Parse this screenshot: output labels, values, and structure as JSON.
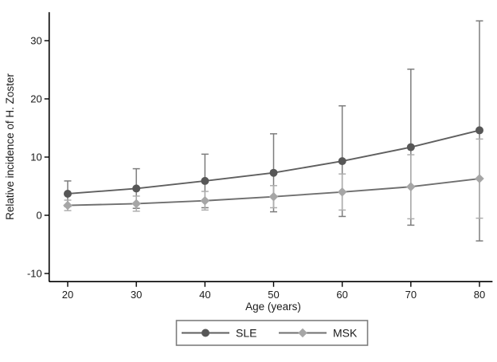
{
  "figure": {
    "background": "#ffffff",
    "axis_color": "#000000",
    "text_color": "#1a1a1a",
    "legend_border_color": "#7d7d7d"
  },
  "chart_data": {
    "type": "line",
    "title": "",
    "xlabel": "Age (years)",
    "ylabel": "Relative incidence of H. Zoster",
    "x": [
      20,
      30,
      40,
      50,
      60,
      70,
      80
    ],
    "xticks": [
      "20",
      "30",
      "40",
      "50",
      "60",
      "70",
      "80"
    ],
    "yticks": [
      "30",
      "20",
      "10",
      "0",
      "-10"
    ],
    "ytick_values": [
      30,
      20,
      10,
      0,
      -10
    ],
    "xlim": [
      17.3,
      81.9
    ],
    "ylim": [
      -11.4,
      34.9
    ],
    "grid": false,
    "legend_position": "bottom-center",
    "error_bars": true,
    "series": [
      {
        "name": "SLE",
        "marker": "circle",
        "marker_color": "#575757",
        "line_color": "#5f5f5f",
        "error_color": "#7d7d7d",
        "values": [
          3.7,
          4.6,
          5.9,
          7.3,
          9.3,
          11.7,
          14.6
        ],
        "ci_low": [
          1.5,
          1.2,
          1.3,
          0.6,
          -0.2,
          -1.7,
          -4.4
        ],
        "ci_high": [
          5.9,
          8.0,
          10.5,
          14.0,
          18.8,
          25.1,
          33.4
        ]
      },
      {
        "name": "MSK",
        "marker": "diamond",
        "marker_color": "#a6a6a6",
        "line_color": "#6f6f6f",
        "error_color": "#aeaeae",
        "values": [
          1.7,
          2.0,
          2.5,
          3.2,
          4.0,
          4.9,
          6.3
        ],
        "ci_low": [
          0.8,
          0.7,
          0.9,
          1.3,
          0.9,
          -0.6,
          -0.5
        ],
        "ci_high": [
          2.6,
          3.3,
          4.1,
          5.1,
          7.1,
          10.4,
          13.1
        ]
      }
    ]
  }
}
